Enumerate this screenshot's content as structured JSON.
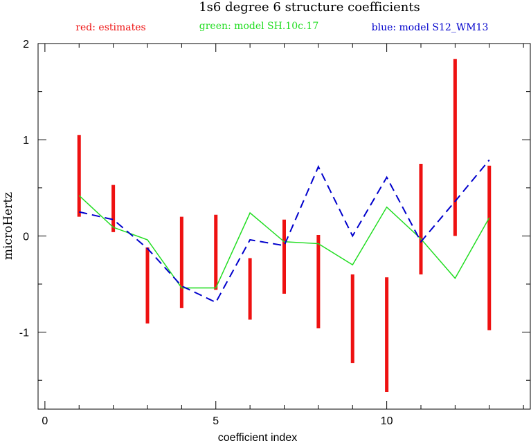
{
  "chart_data": {
    "type": "line",
    "title": "1s6 degree 6 structure coefficients",
    "legend": [
      {
        "text": "red: estimates",
        "color": "#ee1111"
      },
      {
        "text": "green: model SH.10c.17",
        "color": "#22dd22"
      },
      {
        "text": "blue: model S12_WM13",
        "color": "#0000cc"
      }
    ],
    "xlabel": "coefficient index",
    "ylabel": "microHertz",
    "xlim": [
      -0.2,
      14.2
    ],
    "ylim": [
      -1.8,
      2.0
    ],
    "x_ticks": [
      0,
      5,
      10
    ],
    "y_ticks": [
      -1,
      0,
      1,
      2
    ],
    "x_tick_labels": [
      "0",
      "5",
      "10"
    ],
    "y_tick_labels": [
      "-1",
      "0",
      "1",
      "2"
    ],
    "grid": false,
    "estimates": {
      "name": "estimates",
      "color": "#ee1111",
      "x": [
        1,
        2,
        3,
        4,
        5,
        6,
        7,
        8,
        9,
        10,
        11,
        12,
        13
      ],
      "low": [
        0.2,
        0.04,
        -0.91,
        -0.75,
        -0.56,
        -0.87,
        -0.6,
        -0.96,
        -1.32,
        -1.62,
        -0.4,
        0.0,
        -0.98
      ],
      "high": [
        1.05,
        0.53,
        -0.12,
        0.2,
        0.22,
        -0.23,
        0.17,
        0.01,
        -0.4,
        -0.43,
        0.75,
        1.84,
        0.73
      ]
    },
    "series": [
      {
        "name": "model SH.10c.17",
        "color": "#22dd22",
        "style": "solid",
        "x": [
          1,
          2,
          3,
          4,
          5,
          6,
          7,
          8,
          9,
          10,
          11,
          12,
          13
        ],
        "y": [
          0.42,
          0.09,
          -0.04,
          -0.54,
          -0.54,
          0.24,
          -0.06,
          -0.08,
          -0.3,
          0.3,
          -0.03,
          -0.44,
          0.19
        ]
      },
      {
        "name": "model S12_WM13",
        "color": "#0000cc",
        "style": "dashed",
        "x": [
          1,
          2,
          3,
          4,
          5,
          6,
          7,
          8,
          9,
          10,
          11,
          12,
          13
        ],
        "y": [
          0.25,
          0.17,
          -0.13,
          -0.52,
          -0.69,
          -0.04,
          -0.1,
          0.72,
          0.0,
          0.61,
          -0.06,
          0.36,
          0.79
        ]
      }
    ]
  }
}
